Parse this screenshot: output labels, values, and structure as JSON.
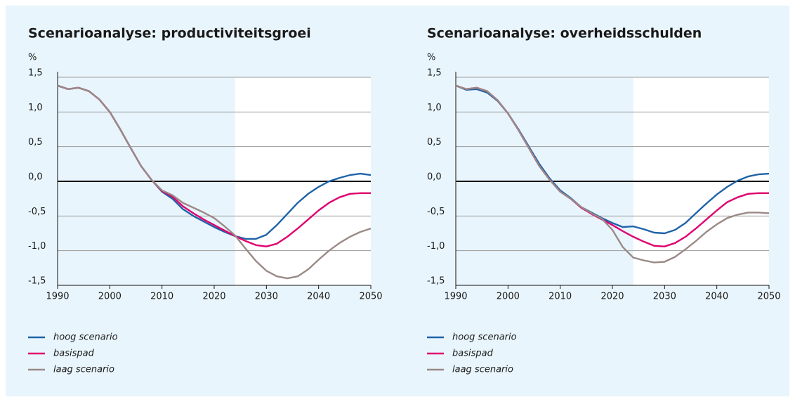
{
  "chart_data": [
    {
      "type": "line",
      "title": "Scenarioanalyse: productiviteitsgroei",
      "ylabel": "%",
      "x": [
        1990,
        1992,
        1994,
        1996,
        1998,
        2000,
        2002,
        2004,
        2006,
        2008,
        2010,
        2012,
        2014,
        2016,
        2018,
        2020,
        2022,
        2024,
        2026,
        2028,
        2030,
        2032,
        2034,
        2036,
        2038,
        2040,
        2042,
        2044,
        2046,
        2048,
        2050
      ],
      "series": [
        {
          "name": "hoog scenario",
          "color": "#1f63a8",
          "values": [
            1.38,
            1.33,
            1.35,
            1.3,
            1.18,
            1.0,
            0.75,
            0.48,
            0.22,
            0.02,
            -0.15,
            -0.25,
            -0.4,
            -0.5,
            -0.58,
            -0.66,
            -0.73,
            -0.79,
            -0.83,
            -0.83,
            -0.77,
            -0.63,
            -0.47,
            -0.31,
            -0.18,
            -0.08,
            0.0,
            0.05,
            0.09,
            0.11,
            0.09
          ]
        },
        {
          "name": "basispad",
          "color": "#e0006f",
          "values": [
            1.38,
            1.33,
            1.35,
            1.3,
            1.18,
            1.0,
            0.75,
            0.48,
            0.22,
            0.02,
            -0.14,
            -0.22,
            -0.36,
            -0.46,
            -0.55,
            -0.63,
            -0.71,
            -0.79,
            -0.86,
            -0.92,
            -0.94,
            -0.9,
            -0.8,
            -0.68,
            -0.55,
            -0.42,
            -0.31,
            -0.23,
            -0.18,
            -0.17,
            -0.17
          ]
        },
        {
          "name": "laag scenario",
          "color": "#9a8a86",
          "values": [
            1.38,
            1.33,
            1.35,
            1.3,
            1.18,
            1.0,
            0.75,
            0.48,
            0.22,
            0.02,
            -0.13,
            -0.2,
            -0.31,
            -0.38,
            -0.45,
            -0.53,
            -0.65,
            -0.78,
            -0.97,
            -1.15,
            -1.29,
            -1.37,
            -1.4,
            -1.37,
            -1.27,
            -1.13,
            -1.0,
            -0.89,
            -0.8,
            -0.73,
            -0.68
          ]
        }
      ],
      "xlim": [
        1990,
        2050
      ],
      "xticks": [
        1990,
        2000,
        2010,
        2020,
        2030,
        2040,
        2050
      ],
      "ylim": [
        -1.5,
        1.5
      ],
      "yticks": [
        {
          "value": -1.5,
          "label": "-1,5"
        },
        {
          "value": -1,
          "label": "-1,0"
        },
        {
          "value": -0.5,
          "label": "-0,5"
        },
        {
          "value": 0,
          "label": "0,0"
        },
        {
          "value": 0.5,
          "label": "0,5"
        },
        {
          "value": 1,
          "label": "1,0"
        },
        {
          "value": 1.5,
          "label": "1,5"
        }
      ],
      "grid": true,
      "shaded_from": 2024,
      "legend": "bottom"
    },
    {
      "type": "line",
      "title": "Scenarioanalyse: overheidsschulden",
      "ylabel": "%",
      "x": [
        1990,
        1992,
        1994,
        1996,
        1998,
        2000,
        2002,
        2004,
        2006,
        2008,
        2010,
        2012,
        2014,
        2016,
        2018,
        2020,
        2022,
        2024,
        2026,
        2028,
        2030,
        2032,
        2034,
        2036,
        2038,
        2040,
        2042,
        2044,
        2046,
        2048,
        2050
      ],
      "series": [
        {
          "name": "hoog scenario",
          "color": "#1f63a8",
          "values": [
            1.38,
            1.32,
            1.33,
            1.28,
            1.16,
            0.98,
            0.75,
            0.5,
            0.25,
            0.04,
            -0.13,
            -0.24,
            -0.37,
            -0.45,
            -0.53,
            -0.6,
            -0.66,
            -0.65,
            -0.69,
            -0.74,
            -0.75,
            -0.7,
            -0.6,
            -0.46,
            -0.32,
            -0.19,
            -0.08,
            0.01,
            0.07,
            0.1,
            0.11
          ]
        },
        {
          "name": "basispad",
          "color": "#e0006f",
          "values": [
            1.38,
            1.33,
            1.35,
            1.3,
            1.17,
            0.98,
            0.74,
            0.48,
            0.22,
            0.02,
            -0.15,
            -0.25,
            -0.38,
            -0.47,
            -0.55,
            -0.63,
            -0.72,
            -0.8,
            -0.87,
            -0.93,
            -0.94,
            -0.89,
            -0.8,
            -0.68,
            -0.55,
            -0.42,
            -0.3,
            -0.23,
            -0.18,
            -0.17,
            -0.17
          ]
        },
        {
          "name": "laag scenario",
          "color": "#9a8a86",
          "values": [
            1.38,
            1.33,
            1.35,
            1.3,
            1.17,
            0.98,
            0.74,
            0.48,
            0.22,
            0.02,
            -0.15,
            -0.25,
            -0.37,
            -0.46,
            -0.54,
            -0.7,
            -0.95,
            -1.1,
            -1.14,
            -1.17,
            -1.16,
            -1.09,
            -0.98,
            -0.86,
            -0.73,
            -0.62,
            -0.53,
            -0.48,
            -0.45,
            -0.45,
            -0.46
          ]
        }
      ],
      "xlim": [
        1990,
        2050
      ],
      "xticks": [
        1990,
        2000,
        2010,
        2020,
        2030,
        2040,
        2050
      ],
      "ylim": [
        -1.5,
        1.5
      ],
      "yticks": [
        {
          "value": -1.5,
          "label": "-1,5"
        },
        {
          "value": -1,
          "label": "-1,0"
        },
        {
          "value": -0.5,
          "label": "-0,5"
        },
        {
          "value": 0,
          "label": "0,0"
        },
        {
          "value": 0.5,
          "label": "0,5"
        },
        {
          "value": 1,
          "label": "1,0"
        },
        {
          "value": 1.5,
          "label": "1,5"
        }
      ],
      "grid": true,
      "shaded_from": 2024,
      "legend": "bottom"
    }
  ]
}
